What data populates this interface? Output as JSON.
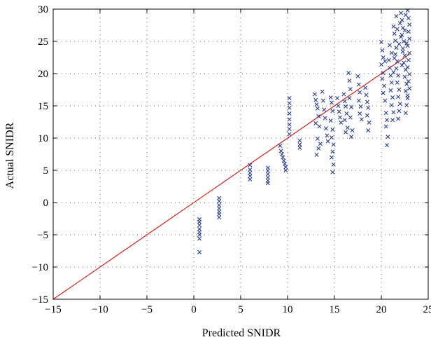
{
  "chart_data": {
    "type": "scatter",
    "title": "",
    "xlabel": "Predicted SNIDR",
    "ylabel": "Actual SNIDR",
    "xlim": [
      -15,
      25
    ],
    "ylim": [
      -15,
      30
    ],
    "xticks": [
      -15,
      -10,
      -5,
      0,
      5,
      10,
      15,
      20,
      25
    ],
    "yticks": [
      -15,
      -10,
      -5,
      0,
      5,
      10,
      15,
      20,
      25,
      30
    ],
    "xtick_labels": [
      "−15",
      "−10",
      "−5",
      "0",
      "5",
      "10",
      "15",
      "20",
      "25"
    ],
    "ytick_labels": [
      "−15",
      "−10",
      "−5",
      "0",
      "5",
      "10",
      "15",
      "20",
      "25",
      "30"
    ],
    "grid": "dotted",
    "marker": "x",
    "colors": {
      "points": "#2b3f9e",
      "fit_line": "#e0201b"
    },
    "series": [
      {
        "values": [
          [
            0.6,
            -2.6
          ],
          [
            0.6,
            -3.0
          ],
          [
            0.6,
            -3.5
          ],
          [
            0.6,
            -4.1
          ],
          [
            0.6,
            -4.6
          ],
          [
            0.6,
            -5.0
          ],
          [
            0.6,
            -5.6
          ],
          [
            0.6,
            -7.7
          ],
          [
            2.7,
            0.7
          ],
          [
            2.7,
            0.2
          ],
          [
            2.7,
            -0.4
          ],
          [
            2.7,
            -0.9
          ],
          [
            2.7,
            -1.4
          ],
          [
            2.7,
            -1.8
          ],
          [
            2.7,
            -2.3
          ],
          [
            6.0,
            5.8
          ],
          [
            6.0,
            5.1
          ],
          [
            6.0,
            4.6
          ],
          [
            6.0,
            4.1
          ],
          [
            6.0,
            3.6
          ],
          [
            7.9,
            5.4
          ],
          [
            7.9,
            4.9
          ],
          [
            7.9,
            4.4
          ],
          [
            7.9,
            3.9
          ],
          [
            7.9,
            3.4
          ],
          [
            7.9,
            3.0
          ],
          [
            9.2,
            8.8
          ],
          [
            9.3,
            8.0
          ],
          [
            9.4,
            7.5
          ],
          [
            9.5,
            7.0
          ],
          [
            9.6,
            6.5
          ],
          [
            9.7,
            6.0
          ],
          [
            9.8,
            5.5
          ],
          [
            9.8,
            5.0
          ],
          [
            10.2,
            16.2
          ],
          [
            10.2,
            15.4
          ],
          [
            10.2,
            14.7
          ],
          [
            10.2,
            13.8
          ],
          [
            10.2,
            12.9
          ],
          [
            10.2,
            12.1
          ],
          [
            10.2,
            11.4
          ],
          [
            10.2,
            10.6
          ],
          [
            11.3,
            9.6
          ],
          [
            11.3,
            9.0
          ],
          [
            11.3,
            8.5
          ],
          [
            12.9,
            16.8
          ],
          [
            13.0,
            15.9
          ],
          [
            13.1,
            15.2
          ],
          [
            13.2,
            14.6
          ],
          [
            13.3,
            13.4
          ],
          [
            13.0,
            12.3
          ],
          [
            13.4,
            11.8
          ],
          [
            13.2,
            9.9
          ],
          [
            13.5,
            9.1
          ],
          [
            13.3,
            8.4
          ],
          [
            13.1,
            7.4
          ],
          [
            13.7,
            17.2
          ],
          [
            13.8,
            15.8
          ],
          [
            13.9,
            14.4
          ],
          [
            14.0,
            13.1
          ],
          [
            14.1,
            11.5
          ],
          [
            14.2,
            10.4
          ],
          [
            14.3,
            9.5
          ],
          [
            14.6,
            16.3
          ],
          [
            14.7,
            15.5
          ],
          [
            14.8,
            14.2
          ],
          [
            14.6,
            12.7
          ],
          [
            14.8,
            11.3
          ],
          [
            14.7,
            10.1
          ],
          [
            14.9,
            9.0
          ],
          [
            14.8,
            7.9
          ],
          [
            14.7,
            7.0
          ],
          [
            14.9,
            5.9
          ],
          [
            14.8,
            4.7
          ],
          [
            15.3,
            16.2
          ],
          [
            15.4,
            15.0
          ],
          [
            15.5,
            14.1
          ],
          [
            15.6,
            13.2
          ],
          [
            15.7,
            12.4
          ],
          [
            16.0,
            16.8
          ],
          [
            16.1,
            15.7
          ],
          [
            16.2,
            14.9
          ],
          [
            16.3,
            13.8
          ],
          [
            16.1,
            12.8
          ],
          [
            16.4,
            11.6
          ],
          [
            16.2,
            10.9
          ],
          [
            16.5,
            20.1
          ],
          [
            16.6,
            18.9
          ],
          [
            16.7,
            17.6
          ],
          [
            16.6,
            16.2
          ],
          [
            16.8,
            14.8
          ],
          [
            16.7,
            13.2
          ],
          [
            16.9,
            11.2
          ],
          [
            16.8,
            10.2
          ],
          [
            17.5,
            19.6
          ],
          [
            17.6,
            18.3
          ],
          [
            17.7,
            17.1
          ],
          [
            17.6,
            15.8
          ],
          [
            17.8,
            14.9
          ],
          [
            17.7,
            13.8
          ],
          [
            17.9,
            12.9
          ],
          [
            18.3,
            17.8
          ],
          [
            18.4,
            16.7
          ],
          [
            18.5,
            15.6
          ],
          [
            18.6,
            14.7
          ],
          [
            18.5,
            13.5
          ],
          [
            18.7,
            12.4
          ],
          [
            18.6,
            11.2
          ],
          [
            20.0,
            24.9
          ],
          [
            20.1,
            23.6
          ],
          [
            20.2,
            22.5
          ],
          [
            20.0,
            21.4
          ],
          [
            20.2,
            20.1
          ],
          [
            20.1,
            19.2
          ],
          [
            20.3,
            18.1
          ],
          [
            20.2,
            17.0
          ],
          [
            20.4,
            15.8
          ],
          [
            20.5,
            13.9
          ],
          [
            20.6,
            12.8
          ],
          [
            20.5,
            11.8
          ],
          [
            20.7,
            10.2
          ],
          [
            20.6,
            8.9
          ],
          [
            20.8,
            22.1
          ],
          [
            20.9,
            20.9
          ],
          [
            21.0,
            19.7
          ],
          [
            21.1,
            18.6
          ],
          [
            21.0,
            17.4
          ],
          [
            21.2,
            16.3
          ],
          [
            21.1,
            15.1
          ],
          [
            21.3,
            14.0
          ],
          [
            21.2,
            12.8
          ],
          [
            21.3,
            27.3
          ],
          [
            21.4,
            26.2
          ],
          [
            21.5,
            25.1
          ],
          [
            21.6,
            24.0
          ],
          [
            21.5,
            23.0
          ],
          [
            21.7,
            21.9
          ],
          [
            21.6,
            20.8
          ],
          [
            21.8,
            19.7
          ],
          [
            21.7,
            18.6
          ],
          [
            21.9,
            17.5
          ],
          [
            21.8,
            16.4
          ],
          [
            22.0,
            15.3
          ],
          [
            21.9,
            14.2
          ],
          [
            21.8,
            13.0
          ],
          [
            22.1,
            29.4
          ],
          [
            22.2,
            28.3
          ],
          [
            22.3,
            27.1
          ],
          [
            22.2,
            26.0
          ],
          [
            22.4,
            25.0
          ],
          [
            22.3,
            23.9
          ],
          [
            22.5,
            22.8
          ],
          [
            22.4,
            21.7
          ],
          [
            22.6,
            20.6
          ],
          [
            22.5,
            19.5
          ],
          [
            22.7,
            18.4
          ],
          [
            22.6,
            17.3
          ],
          [
            22.8,
            16.2
          ],
          [
            22.7,
            15.1
          ],
          [
            22.6,
            13.9
          ],
          [
            22.8,
            29.8
          ],
          [
            22.9,
            28.6
          ],
          [
            23.0,
            27.6
          ],
          [
            22.9,
            26.5
          ],
          [
            23.0,
            25.4
          ],
          [
            22.8,
            24.3
          ],
          [
            23.0,
            23.2
          ],
          [
            22.9,
            22.1
          ],
          [
            22.8,
            21.0
          ],
          [
            23.0,
            19.9
          ],
          [
            22.9,
            18.8
          ],
          [
            23.0,
            17.7
          ],
          [
            22.8,
            16.6
          ],
          [
            21.6,
            28.9
          ],
          [
            22.0,
            27.8
          ],
          [
            21.7,
            26.9
          ],
          [
            22.1,
            25.7
          ],
          [
            21.9,
            24.6
          ],
          [
            22.3,
            23.4
          ],
          [
            21.4,
            22.4
          ],
          [
            22.2,
            21.3
          ],
          [
            21.3,
            20.2
          ],
          [
            22.6,
            29.1
          ],
          [
            22.5,
            26.7
          ],
          [
            22.7,
            24.7
          ],
          [
            21.1,
            23.2
          ],
          [
            20.9,
            24.4
          ],
          [
            20.4,
            21.9
          ]
        ]
      }
    ],
    "fit_line": {
      "x": [
        -15,
        23
      ],
      "y": [
        -15,
        23
      ]
    }
  }
}
